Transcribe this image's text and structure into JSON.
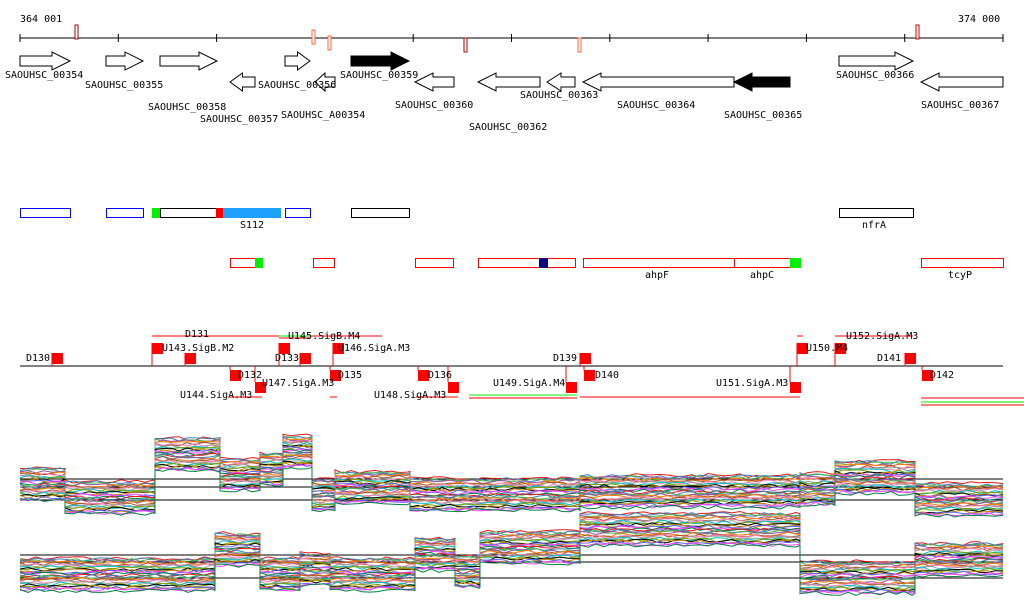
{
  "ruler": {
    "start": "364 001",
    "end": "374 000"
  },
  "genes": [
    "SAOUHSC_00354",
    "SAOUHSC_00355",
    "SAOUHSC_00358",
    "SAOUHSC_00356",
    "SAOUHSC_00359",
    "SAOUHSC_00366",
    "SAOUHSC_00357",
    "SAOUHSC_A00354",
    "SAOUHSC_00360",
    "SAOUHSC_00362",
    "SAOUHSC_00363",
    "SAOUHSC_00364",
    "SAOUHSC_00365",
    "SAOUHSC_00367"
  ],
  "features": {
    "s112": "S112",
    "nfrA": "nfrA",
    "ahpF": "ahpF",
    "ahpC": "ahpC",
    "tcyP": "tcyP"
  },
  "sites": [
    "D130",
    "U143.SigB.M2",
    "D131",
    "D133",
    "U145.SigB.M4",
    "U146.SigA.M3",
    "D139",
    "U150.M4",
    "U152.SigA.M3",
    "D141",
    "D132",
    "U144.SigA.M3",
    "U147.SigA.M3",
    "D135",
    "D136",
    "U148.SigA.M3",
    "U149.SigA.M4",
    "D140",
    "U151.SigA.M3",
    "D142"
  ],
  "colors": {
    "red": "#ff0000",
    "green": "#00ee00",
    "blue": "#0000ff",
    "lightblue": "#1ea0ff",
    "navy": "#000080"
  }
}
